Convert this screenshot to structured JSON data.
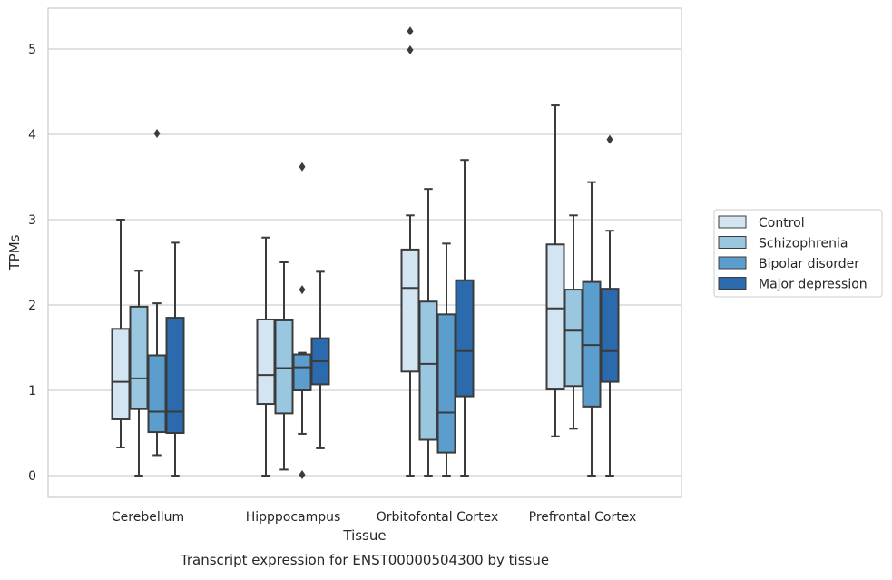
{
  "chart_data": {
    "type": "box",
    "xlabel": "Tissue",
    "ylabel": "TPMs",
    "caption": "Transcript expression for ENST00000504300 by tissue",
    "ylim": [
      -0.25,
      5.5
    ],
    "yticks": [
      0,
      1,
      2,
      3,
      4,
      5
    ],
    "grid": "horizontal",
    "legend_position": "right",
    "categories": [
      "Cerebellum",
      "Hipppocampus",
      "Orbitofontal Cortex",
      "Prefrontal Cortex"
    ],
    "series": [
      {
        "name": "Control",
        "color": "#d3e4f3",
        "boxes": [
          {
            "whislo": 0.33,
            "q1": 0.66,
            "med": 1.1,
            "q3": 1.72,
            "whishi": 3.0,
            "fliers": []
          },
          {
            "whislo": 0.0,
            "q1": 0.84,
            "med": 1.18,
            "q3": 1.83,
            "whishi": 2.79,
            "fliers": []
          },
          {
            "whislo": 0.0,
            "q1": 1.22,
            "med": 2.2,
            "q3": 2.65,
            "whishi": 3.05,
            "fliers": [
              4.99,
              5.21
            ]
          },
          {
            "whislo": 0.46,
            "q1": 1.01,
            "med": 1.96,
            "q3": 2.71,
            "whishi": 4.34,
            "fliers": []
          }
        ]
      },
      {
        "name": "Schizophrenia",
        "color": "#9ac7e0",
        "boxes": [
          {
            "whislo": 0.0,
            "q1": 0.78,
            "med": 1.14,
            "q3": 1.98,
            "whishi": 2.4,
            "fliers": []
          },
          {
            "whislo": 0.07,
            "q1": 0.73,
            "med": 1.26,
            "q3": 1.82,
            "whishi": 2.5,
            "fliers": []
          },
          {
            "whislo": 0.0,
            "q1": 0.42,
            "med": 1.31,
            "q3": 2.04,
            "whishi": 3.36,
            "fliers": []
          },
          {
            "whislo": 0.55,
            "q1": 1.05,
            "med": 1.7,
            "q3": 2.18,
            "whishi": 3.05,
            "fliers": []
          }
        ]
      },
      {
        "name": "Bipolar disorder",
        "color": "#5b9ecd",
        "boxes": [
          {
            "whislo": 0.24,
            "q1": 0.51,
            "med": 0.75,
            "q3": 1.41,
            "whishi": 2.02,
            "fliers": [
              4.01
            ]
          },
          {
            "whislo": 0.49,
            "q1": 1.0,
            "med": 1.27,
            "q3": 1.42,
            "whishi": 1.44,
            "fliers": [
              2.18,
              3.62,
              0.01
            ]
          },
          {
            "whislo": 0.0,
            "q1": 0.27,
            "med": 0.74,
            "q3": 1.89,
            "whishi": 2.72,
            "fliers": []
          },
          {
            "whislo": 0.0,
            "q1": 0.81,
            "med": 1.53,
            "q3": 2.27,
            "whishi": 3.44,
            "fliers": []
          }
        ]
      },
      {
        "name": "Major depression",
        "color": "#2a6aad",
        "boxes": [
          {
            "whislo": 0.0,
            "q1": 0.5,
            "med": 0.75,
            "q3": 1.85,
            "whishi": 2.73,
            "fliers": []
          },
          {
            "whislo": 0.32,
            "q1": 1.07,
            "med": 1.34,
            "q3": 1.61,
            "whishi": 2.39,
            "fliers": []
          },
          {
            "whislo": 0.0,
            "q1": 0.93,
            "med": 1.46,
            "q3": 2.29,
            "whishi": 3.7,
            "fliers": []
          },
          {
            "whislo": 0.0,
            "q1": 1.1,
            "med": 1.46,
            "q3": 2.19,
            "whishi": 2.87,
            "fliers": [
              3.94
            ]
          }
        ]
      }
    ]
  }
}
